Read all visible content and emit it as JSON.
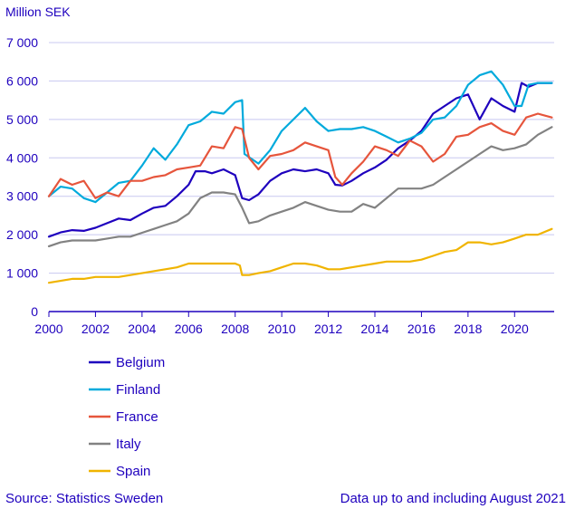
{
  "chart_data": {
    "type": "line",
    "ylabel": "Million SEK",
    "ylim": [
      0,
      7000
    ],
    "yticks": [
      0,
      1000,
      2000,
      3000,
      4000,
      5000,
      6000,
      7000
    ],
    "ytick_labels": [
      "0",
      "1 000",
      "2 000",
      "3 000",
      "4 000",
      "5 000",
      "6 000",
      "7 000"
    ],
    "xlim": [
      2000,
      2021.7
    ],
    "xticks": [
      2000,
      2002,
      2004,
      2006,
      2008,
      2010,
      2012,
      2014,
      2016,
      2018,
      2020
    ],
    "xtick_labels": [
      "2000",
      "2002",
      "2004",
      "2006",
      "2008",
      "2010",
      "2012",
      "2014",
      "2016",
      "2018",
      "2020"
    ],
    "grid": "horizontal",
    "source": "Source: Statistics Sweden",
    "note": "Data up to and including August 2021",
    "series": [
      {
        "name": "Belgium",
        "color": "#1e00be",
        "x": [
          2000,
          2000.5,
          2001,
          2001.5,
          2002,
          2002.5,
          2003,
          2003.5,
          2004,
          2004.5,
          2005,
          2005.5,
          2006,
          2006.3,
          2006.7,
          2007,
          2007.5,
          2008,
          2008.3,
          2008.6,
          2009,
          2009.5,
          2010,
          2010.5,
          2011,
          2011.5,
          2012,
          2012.3,
          2012.6,
          2013,
          2013.5,
          2014,
          2014.5,
          2015,
          2015.5,
          2016,
          2016.5,
          2017,
          2017.5,
          2018,
          2018.5,
          2019,
          2019.5,
          2020,
          2020.3,
          2020.6,
          2021,
          2021.6
        ],
        "values": [
          1950,
          2060,
          2120,
          2100,
          2180,
          2300,
          2420,
          2380,
          2550,
          2700,
          2750,
          3000,
          3300,
          3650,
          3650,
          3600,
          3700,
          3550,
          2950,
          2900,
          3050,
          3400,
          3600,
          3700,
          3650,
          3700,
          3600,
          3300,
          3280,
          3400,
          3600,
          3750,
          3950,
          4250,
          4450,
          4700,
          5150,
          5350,
          5550,
          5650,
          5000,
          5550,
          5350,
          5200,
          5950,
          5850,
          5950,
          5950
        ]
      },
      {
        "name": "Finland",
        "color": "#00aadc",
        "x": [
          2000,
          2000.5,
          2001,
          2001.5,
          2002,
          2002.5,
          2003,
          2003.5,
          2004,
          2004.5,
          2005,
          2005.5,
          2006,
          2006.5,
          2007,
          2007.5,
          2008,
          2008.3,
          2008.4,
          2009,
          2009.5,
          2010,
          2010.5,
          2011,
          2011.5,
          2012,
          2012.5,
          2013,
          2013.5,
          2014,
          2014.5,
          2015,
          2015.5,
          2016,
          2016.5,
          2017,
          2017.5,
          2018,
          2018.5,
          2019,
          2019.5,
          2020,
          2020.3,
          2020.6,
          2021,
          2021.6
        ],
        "values": [
          3000,
          3250,
          3200,
          2950,
          2850,
          3100,
          3350,
          3400,
          3800,
          4250,
          3950,
          4350,
          4850,
          4950,
          5200,
          5150,
          5450,
          5500,
          4100,
          3850,
          4200,
          4700,
          5000,
          5300,
          4950,
          4700,
          4750,
          4750,
          4800,
          4700,
          4550,
          4400,
          4500,
          4650,
          5000,
          5050,
          5350,
          5900,
          6150,
          6250,
          5900,
          5350,
          5350,
          5900,
          5950,
          5950
        ]
      },
      {
        "name": "France",
        "color": "#e6553c",
        "x": [
          2000,
          2000.5,
          2001,
          2001.5,
          2002,
          2002.5,
          2003,
          2003.5,
          2004,
          2004.5,
          2005,
          2005.5,
          2006,
          2006.5,
          2007,
          2007.5,
          2008,
          2008.3,
          2008.6,
          2009,
          2009.5,
          2010,
          2010.5,
          2011,
          2011.5,
          2012,
          2012.3,
          2012.6,
          2013,
          2013.5,
          2014,
          2014.5,
          2015,
          2015.5,
          2016,
          2016.5,
          2017,
          2017.5,
          2018,
          2018.5,
          2019,
          2019.5,
          2020,
          2020.5,
          2021,
          2021.6
        ],
        "values": [
          3000,
          3450,
          3300,
          3400,
          2950,
          3100,
          3000,
          3400,
          3400,
          3500,
          3550,
          3700,
          3750,
          3800,
          4300,
          4250,
          4800,
          4750,
          4000,
          3700,
          4050,
          4100,
          4200,
          4400,
          4300,
          4200,
          3500,
          3300,
          3600,
          3900,
          4300,
          4200,
          4050,
          4450,
          4300,
          3900,
          4100,
          4550,
          4600,
          4800,
          4900,
          4700,
          4600,
          5050,
          5150,
          5050
        ]
      },
      {
        "name": "Italy",
        "color": "#828282",
        "x": [
          2000,
          2000.5,
          2001,
          2001.5,
          2002,
          2002.5,
          2003,
          2003.5,
          2004,
          2004.5,
          2005,
          2005.5,
          2006,
          2006.5,
          2007,
          2007.5,
          2008,
          2008.3,
          2008.6,
          2009,
          2009.5,
          2010,
          2010.5,
          2011,
          2011.5,
          2012,
          2012.5,
          2013,
          2013.5,
          2014,
          2014.5,
          2015,
          2015.5,
          2016,
          2016.5,
          2017,
          2017.5,
          2018,
          2018.5,
          2019,
          2019.5,
          2020,
          2020.5,
          2021,
          2021.6
        ],
        "values": [
          1700,
          1800,
          1850,
          1850,
          1850,
          1900,
          1950,
          1950,
          2050,
          2150,
          2250,
          2350,
          2550,
          2950,
          3100,
          3100,
          3050,
          2700,
          2300,
          2350,
          2500,
          2600,
          2700,
          2850,
          2750,
          2650,
          2600,
          2600,
          2800,
          2700,
          2950,
          3200,
          3200,
          3200,
          3300,
          3500,
          3700,
          3900,
          4100,
          4300,
          4200,
          4250,
          4350,
          4600,
          4800
        ]
      },
      {
        "name": "Spain",
        "color": "#f0b400",
        "x": [
          2000,
          2000.5,
          2001,
          2001.5,
          2002,
          2002.5,
          2003,
          2003.5,
          2004,
          2004.5,
          2005,
          2005.5,
          2006,
          2006.5,
          2007,
          2007.5,
          2008,
          2008.2,
          2008.3,
          2008.6,
          2009,
          2009.5,
          2010,
          2010.5,
          2011,
          2011.5,
          2012,
          2012.5,
          2013,
          2013.5,
          2014,
          2014.5,
          2015,
          2015.5,
          2016,
          2016.5,
          2017,
          2017.5,
          2018,
          2018.5,
          2019,
          2019.5,
          2020,
          2020.5,
          2021,
          2021.6
        ],
        "values": [
          750,
          800,
          850,
          850,
          900,
          900,
          900,
          950,
          1000,
          1050,
          1100,
          1150,
          1250,
          1250,
          1250,
          1250,
          1250,
          1200,
          950,
          950,
          1000,
          1050,
          1150,
          1250,
          1250,
          1200,
          1100,
          1100,
          1150,
          1200,
          1250,
          1300,
          1300,
          1300,
          1350,
          1450,
          1550,
          1600,
          1800,
          1800,
          1750,
          1800,
          1900,
          2000,
          2000,
          2150
        ]
      }
    ]
  }
}
